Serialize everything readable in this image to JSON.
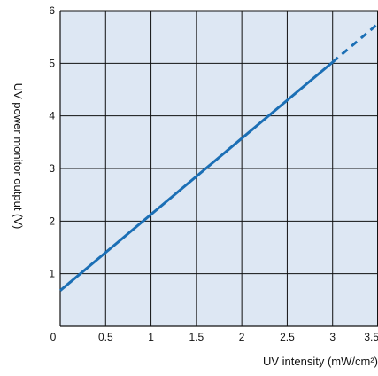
{
  "chart_data": {
    "type": "line",
    "title": "",
    "xlabel": "UV intensity (mW/cm²)",
    "ylabel": "UV power monitor output (V)",
    "xlim": [
      0,
      3.5
    ],
    "ylim": [
      0,
      6
    ],
    "x_ticks": [
      "0",
      "0.5",
      "1",
      "1.5",
      "2",
      "2.5",
      "3",
      "3.5"
    ],
    "y_ticks": [
      "1",
      "2",
      "3",
      "4",
      "5",
      "6"
    ],
    "grid": true,
    "colors": {
      "plot_background": "#dde7f3",
      "grid": "#111111",
      "line": "#1b6fb5"
    },
    "series": [
      {
        "style": "solid",
        "x": [
          0,
          3.0
        ],
        "y": [
          0.68,
          5.02
        ]
      },
      {
        "style": "dashed",
        "x": [
          3.0,
          3.5
        ],
        "y": [
          5.02,
          5.75
        ]
      }
    ]
  }
}
